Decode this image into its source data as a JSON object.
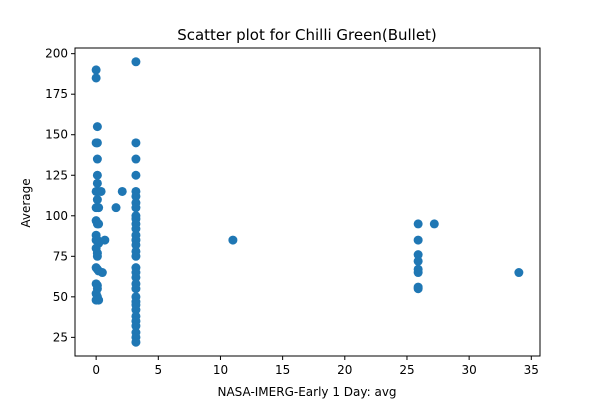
{
  "chart_data": {
    "type": "scatter",
    "title": "Scatter plot for Chilli Green(Bullet)",
    "xlabel": "NASA-IMERG-Early 1 Day: avg",
    "ylabel": "Average",
    "xlim": [
      -1.7,
      35.7
    ],
    "ylim": [
      13.5,
      203.5
    ],
    "xticks": [
      0,
      5,
      10,
      15,
      20,
      25,
      30,
      35
    ],
    "yticks": [
      25,
      50,
      75,
      100,
      125,
      150,
      175,
      200
    ],
    "grid": false,
    "marker_color": "#1f77b4",
    "series": [
      {
        "points": [
          [
            0,
            190
          ],
          [
            0,
            185
          ],
          [
            0.1,
            155
          ],
          [
            0,
            145
          ],
          [
            0.1,
            145
          ],
          [
            0.1,
            135
          ],
          [
            0.1,
            125
          ],
          [
            0.1,
            120
          ],
          [
            0,
            115
          ],
          [
            0.2,
            115
          ],
          [
            0.4,
            115
          ],
          [
            0.1,
            110
          ],
          [
            0,
            105
          ],
          [
            0.2,
            105
          ],
          [
            0,
            97
          ],
          [
            0.1,
            95
          ],
          [
            0.2,
            95
          ],
          [
            0,
            88
          ],
          [
            0,
            85
          ],
          [
            0.1,
            85
          ],
          [
            0.2,
            83
          ],
          [
            0,
            80
          ],
          [
            0.1,
            77
          ],
          [
            0.1,
            75
          ],
          [
            0,
            68
          ],
          [
            0.1,
            67
          ],
          [
            0.2,
            66
          ],
          [
            0,
            58
          ],
          [
            0.1,
            57
          ],
          [
            0.1,
            55
          ],
          [
            0,
            52
          ],
          [
            0.1,
            50
          ],
          [
            0,
            48
          ],
          [
            0.2,
            48
          ],
          [
            0.5,
            65
          ],
          [
            0.7,
            85
          ],
          [
            1.6,
            105
          ],
          [
            2.1,
            115
          ],
          [
            3.2,
            195
          ],
          [
            3.2,
            145
          ],
          [
            3.2,
            135
          ],
          [
            3.2,
            125
          ],
          [
            3.2,
            115
          ],
          [
            3.2,
            112
          ],
          [
            3.2,
            108
          ],
          [
            3.2,
            105
          ],
          [
            3.2,
            100
          ],
          [
            3.2,
            98
          ],
          [
            3.2,
            95
          ],
          [
            3.2,
            92
          ],
          [
            3.2,
            88
          ],
          [
            3.2,
            85
          ],
          [
            3.2,
            82
          ],
          [
            3.2,
            78
          ],
          [
            3.2,
            75
          ],
          [
            3.2,
            68
          ],
          [
            3.2,
            65
          ],
          [
            3.2,
            62
          ],
          [
            3.2,
            58
          ],
          [
            3.2,
            55
          ],
          [
            3.2,
            50
          ],
          [
            3.2,
            47
          ],
          [
            3.2,
            45
          ],
          [
            3.2,
            42
          ],
          [
            3.2,
            38
          ],
          [
            3.2,
            35
          ],
          [
            3.2,
            32
          ],
          [
            3.2,
            28
          ],
          [
            3.2,
            25
          ],
          [
            3.2,
            22
          ],
          [
            11,
            85
          ],
          [
            25.9,
            95
          ],
          [
            25.9,
            85
          ],
          [
            25.9,
            76
          ],
          [
            25.9,
            72
          ],
          [
            25.9,
            67
          ],
          [
            25.9,
            65
          ],
          [
            25.9,
            56
          ],
          [
            25.9,
            55
          ],
          [
            27.2,
            95
          ],
          [
            34,
            65
          ]
        ]
      }
    ]
  }
}
